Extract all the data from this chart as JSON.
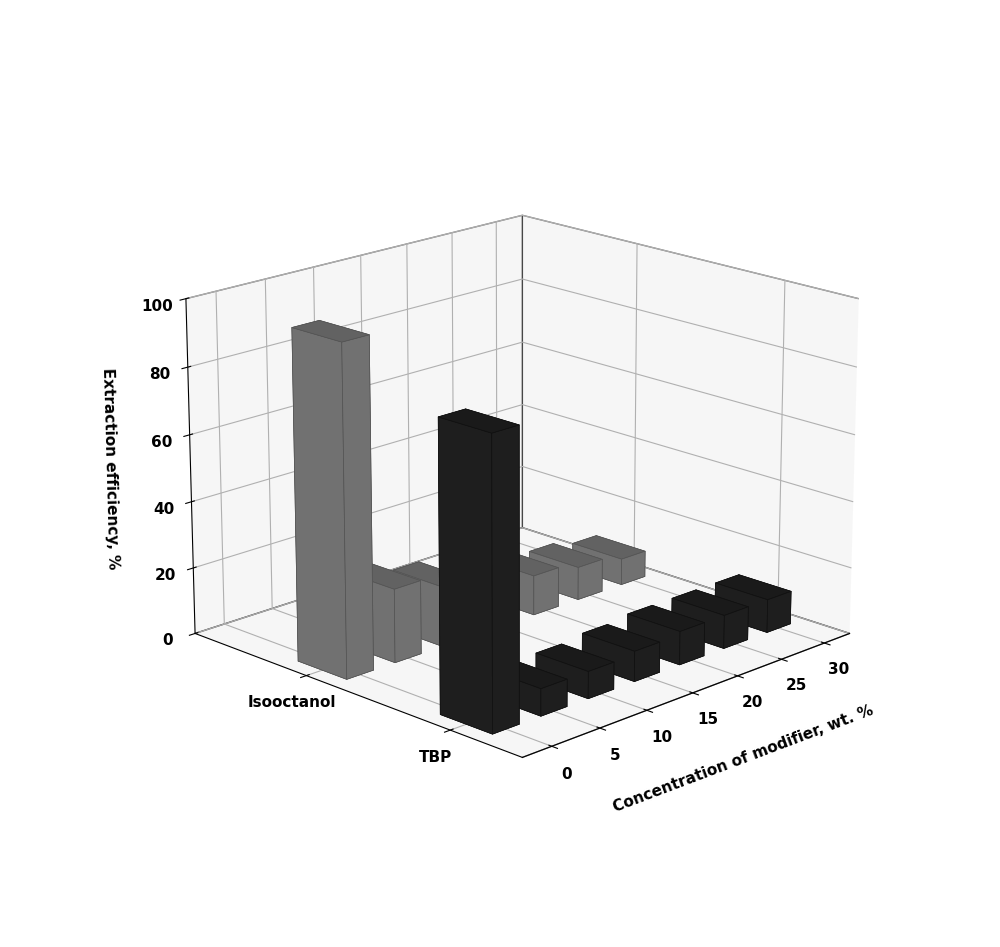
{
  "x_labels": [
    "0",
    "5",
    "10",
    "15",
    "20",
    "25",
    "30"
  ],
  "series_tbp": [
    85,
    8,
    8,
    9,
    10,
    10,
    10
  ],
  "series_iso": [
    98,
    22,
    18,
    16,
    12,
    10,
    8
  ],
  "tbp_color": "#222222",
  "iso_color": "#808080",
  "zlabel": "Extraction efficiency, %",
  "xlabel": "Concentration of modifier, wt. %",
  "ytick_tbp": "TBP",
  "ytick_iso": "Isooctanol",
  "zlim": [
    0,
    100
  ],
  "zticks": [
    0,
    20,
    40,
    60,
    80,
    100
  ],
  "background_color": "#ffffff",
  "bar_width": 0.55,
  "bar_depth": 0.35,
  "elev": 18,
  "azim": 225,
  "pane_color": "#efefef"
}
